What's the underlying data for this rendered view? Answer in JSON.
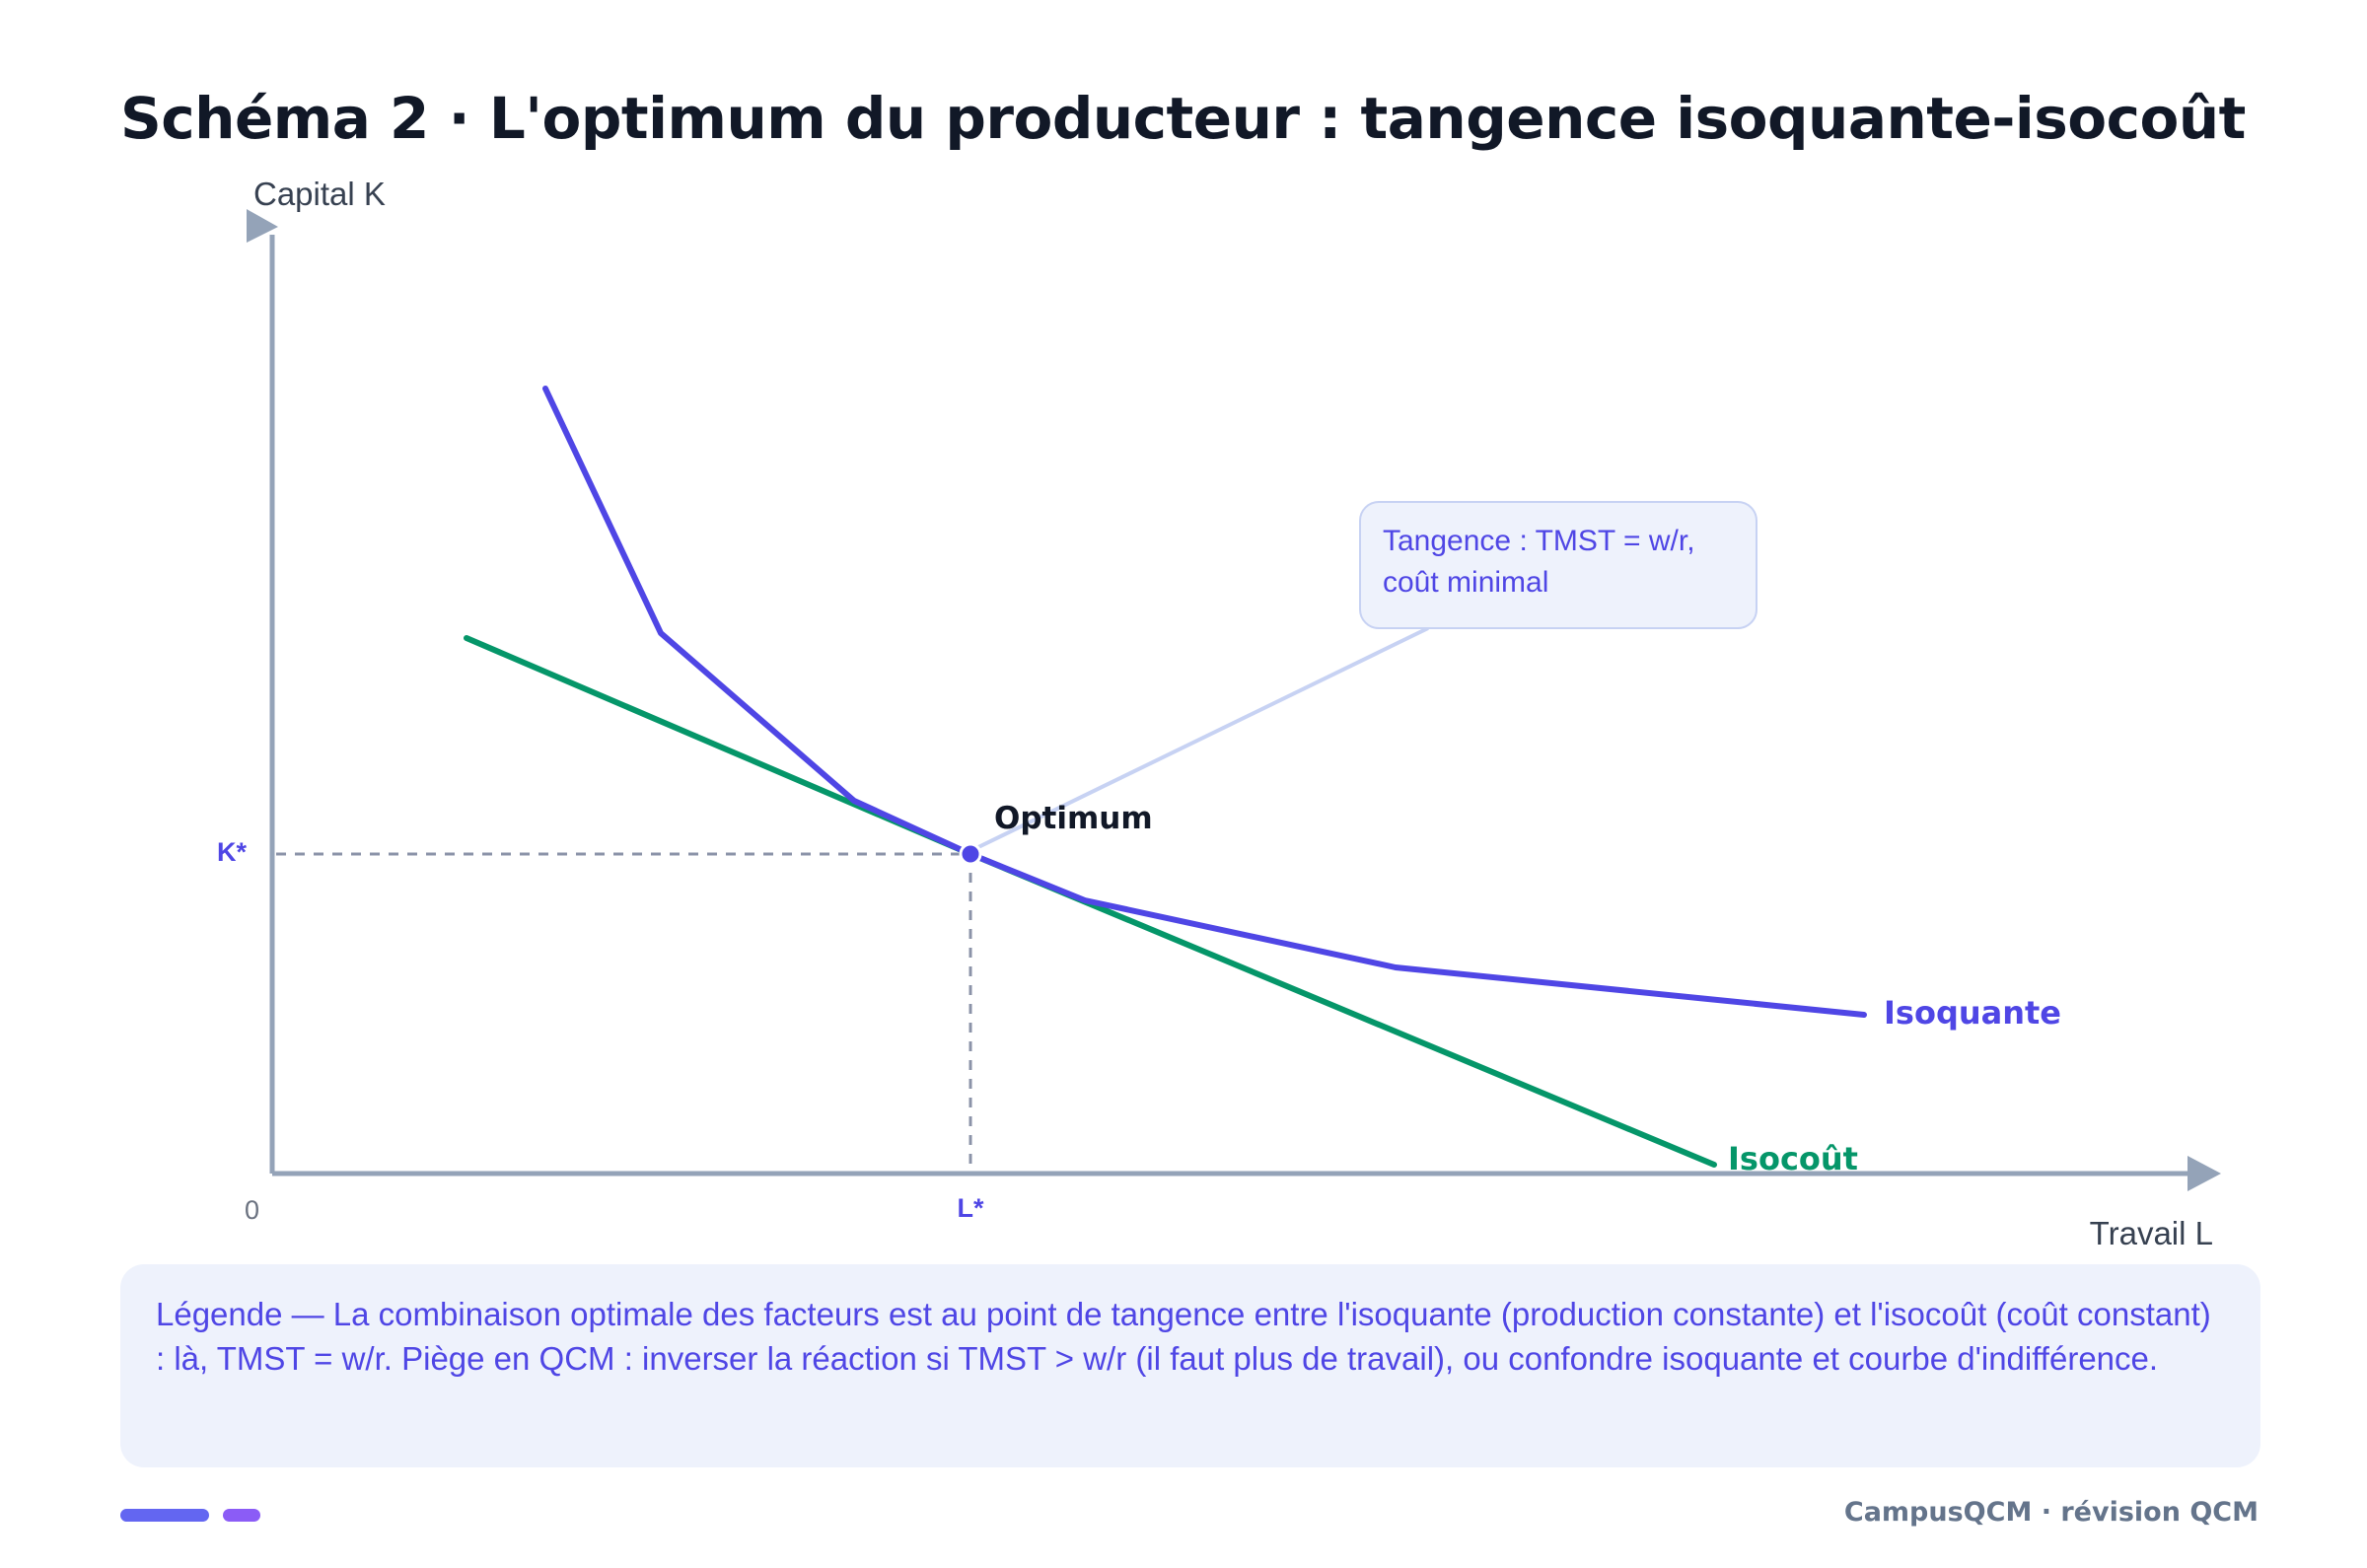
{
  "title": "Schéma 2 · L'optimum du producteur : tangence isoquante-isocoût",
  "axes": {
    "y_label": "Capital K",
    "x_label": "Travail L",
    "origin_label": "0",
    "k_star_label": "K*",
    "l_star_label": "L*"
  },
  "curves": {
    "isoquant_label": "Isoquante",
    "isocost_label": "Isocoût",
    "optimum_label": "Optimum"
  },
  "callout": {
    "line1": "Tangence : TMST = w/r,",
    "line2": "coût minimal"
  },
  "legend": {
    "text": "Légende — La combinaison optimale des facteurs est au point de tangence entre l'isoquante (production constante) et l'isocoût (coût constant) : là, TMST = w/r. Piège en QCM : inverser la réaction si TMST > w/r (il faut plus de travail), ou confondre isoquante et courbe d'indifférence."
  },
  "footer": {
    "brand": "CampusQCM · révision QCM"
  },
  "colors": {
    "isoquant": "#4f46e5",
    "isocost": "#059669",
    "axis": "#94a3b8",
    "text_dark": "#111827",
    "accent": "#6366f1"
  }
}
